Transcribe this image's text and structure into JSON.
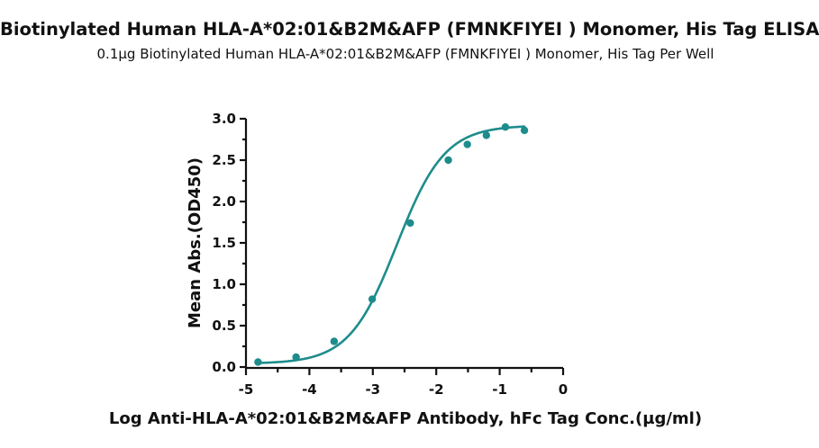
{
  "chart_data": {
    "type": "scatter",
    "title": "Biotinylated Human HLA-A*02:01&B2M&AFP (FMNKFIYEI ) Monomer, His Tag ELISA",
    "subtitle": "0.1µg Biotinylated Human HLA-A*02:01&B2M&AFP (FMNKFIYEI ) Monomer, His Tag Per Well",
    "xlabel": "Log Anti-HLA-A*02:01&B2M&AFP Antibody, hFc Tag Conc.(µg/ml)",
    "ylabel": "Mean Abs.(OD450)",
    "xlim": [
      -5,
      0
    ],
    "ylim": [
      0,
      3.0
    ],
    "x_ticks": [
      "-5",
      "-4",
      "-3",
      "-2",
      "-1",
      "0"
    ],
    "y_ticks": [
      "0.0",
      "0.5",
      "1.0",
      "1.5",
      "2.0",
      "2.5",
      "3.0"
    ],
    "grid": false,
    "series": [
      {
        "x": [
          -4.81,
          -4.21,
          -3.61,
          -3.01,
          -2.41,
          -1.81,
          -1.51,
          -1.21,
          -0.91,
          -0.61
        ],
        "y": [
          0.06,
          0.12,
          0.31,
          0.82,
          1.74,
          2.5,
          2.69,
          2.8,
          2.9,
          2.86
        ],
        "fit_curve": "sigmoidal",
        "color": "#1e8c8c"
      }
    ]
  }
}
